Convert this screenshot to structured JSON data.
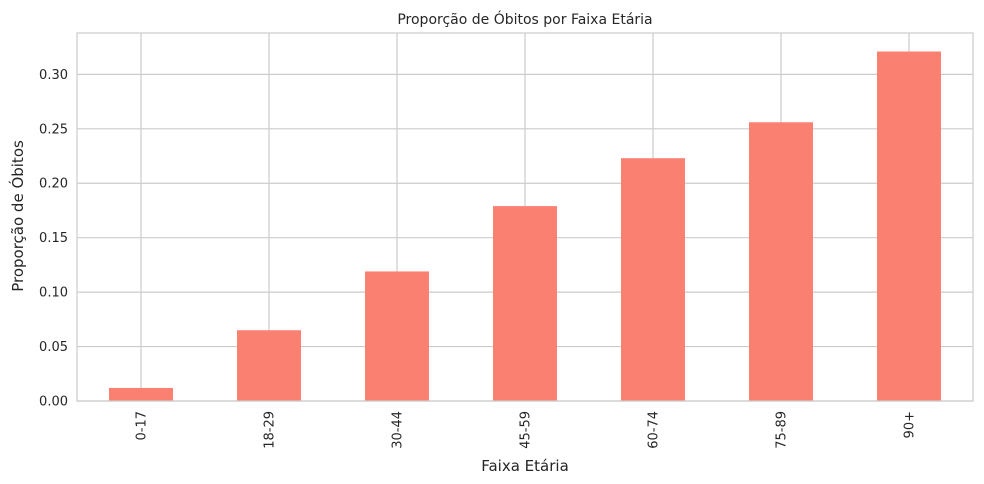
{
  "chart_data": {
    "type": "bar",
    "title": "Proporção de Óbitos por Faixa Etária",
    "xlabel": "Faixa Etária",
    "ylabel": "Proporção de Óbitos",
    "categories": [
      "0-17",
      "18-29",
      "30-44",
      "45-59",
      "60-74",
      "75-89",
      "90+"
    ],
    "values": [
      0.012,
      0.065,
      0.119,
      0.179,
      0.223,
      0.256,
      0.321
    ],
    "ylim": [
      0,
      0.338
    ],
    "yticks": [
      0.0,
      0.05,
      0.1,
      0.15,
      0.2,
      0.25,
      0.3
    ],
    "ytick_labels": [
      "0.00",
      "0.05",
      "0.10",
      "0.15",
      "0.20",
      "0.25",
      "0.30"
    ],
    "bar_color": "#fa8072",
    "grid": true,
    "grid_color": "#cccccc",
    "frame_color": "#cccccc"
  }
}
